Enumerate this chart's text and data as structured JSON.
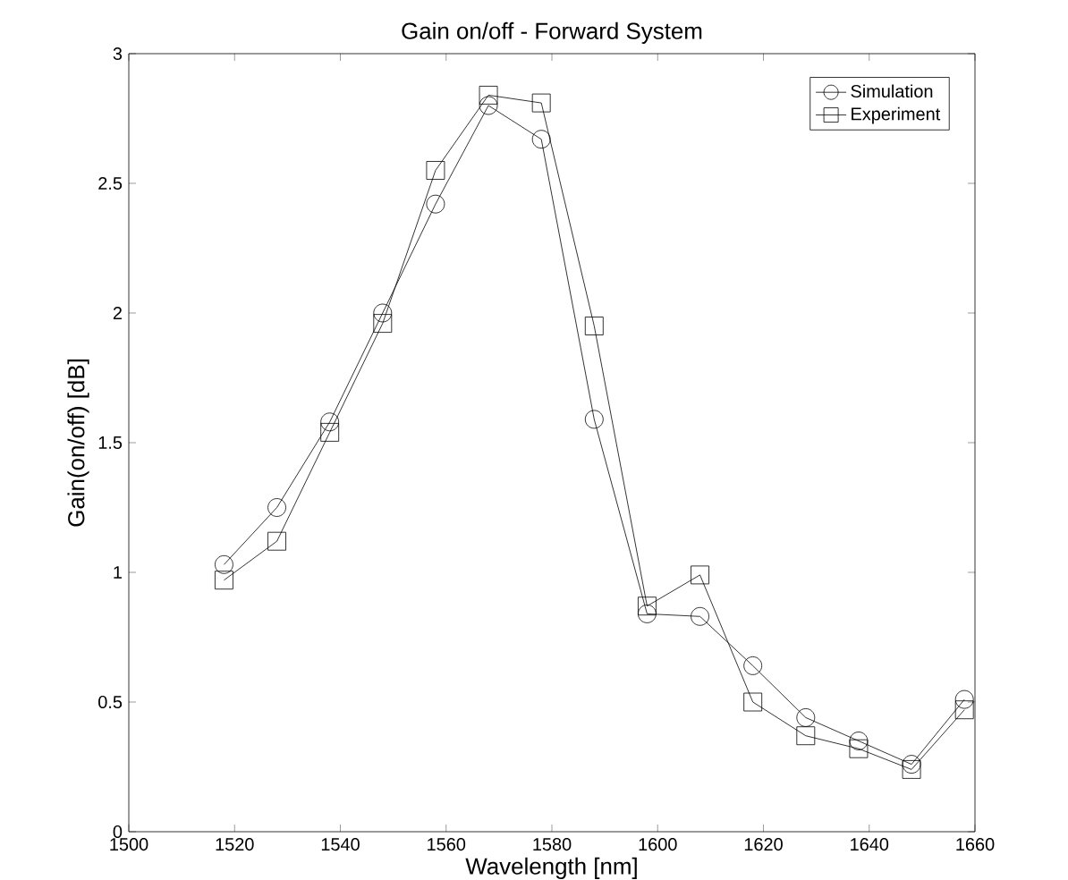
{
  "chart_data": {
    "type": "line",
    "title": "Gain on/off - Forward System",
    "xlabel": "Wavelength [nm]",
    "ylabel": "Gain(on/off) [dB]",
    "x": [
      1518,
      1528,
      1538,
      1548,
      1558,
      1568,
      1578,
      1588,
      1598,
      1608,
      1618,
      1628,
      1638,
      1648,
      1658
    ],
    "series": [
      {
        "name": "Simulation",
        "color": "#000000",
        "marker": "circle",
        "values": [
          1.03,
          1.25,
          1.58,
          2.0,
          2.42,
          2.8,
          2.67,
          1.59,
          0.84,
          0.83,
          0.64,
          0.44,
          0.35,
          0.26,
          0.51
        ]
      },
      {
        "name": "Experiment",
        "color": "#000000",
        "marker": "square",
        "values": [
          0.97,
          1.12,
          1.54,
          1.96,
          2.55,
          2.84,
          2.81,
          1.95,
          0.87,
          0.99,
          0.5,
          0.37,
          0.32,
          0.24,
          0.47
        ]
      }
    ],
    "xlim": [
      1500,
      1660
    ],
    "xticks": [
      1500,
      1520,
      1540,
      1560,
      1580,
      1600,
      1620,
      1640,
      1660
    ],
    "ylim": [
      0,
      3
    ],
    "yticks": [
      0,
      0.5,
      1,
      1.5,
      2,
      2.5,
      3
    ],
    "legend": "top right",
    "grid": false
  }
}
